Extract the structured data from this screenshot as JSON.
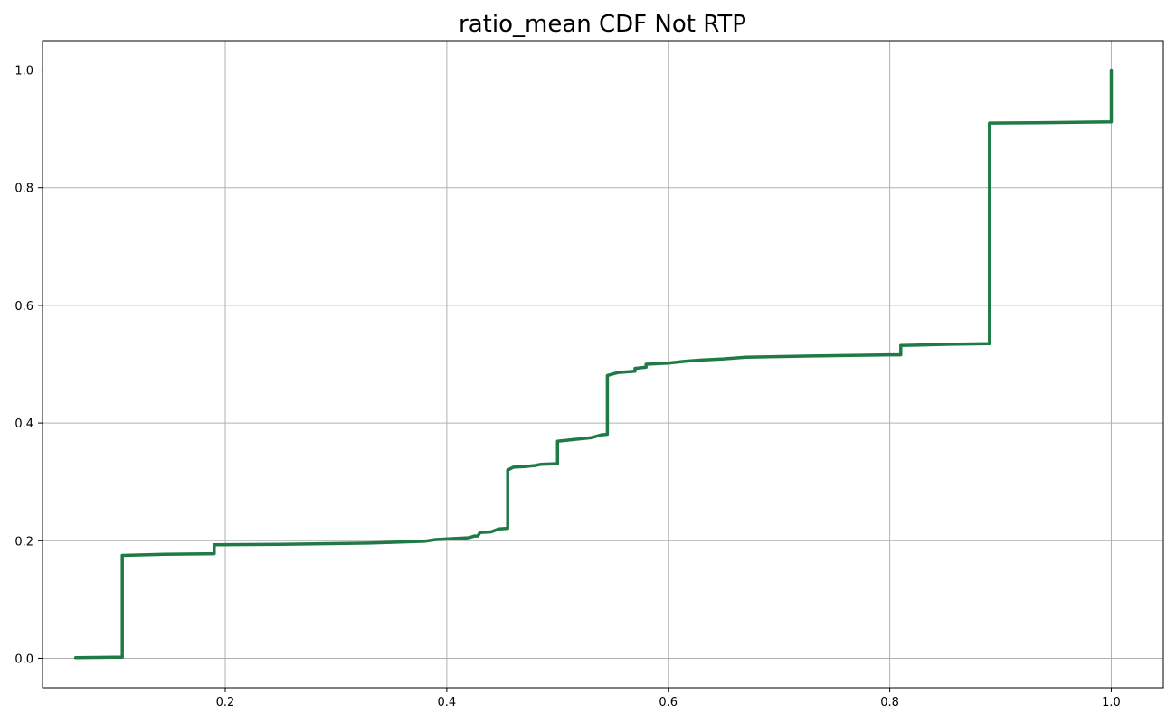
{
  "chart_data": {
    "type": "line",
    "title": "ratio_mean CDF Not RTP",
    "xlabel": "",
    "ylabel": "",
    "xlim": [
      0.035,
      1.047
    ],
    "ylim": [
      -0.05,
      1.05
    ],
    "xticks": [
      0.2,
      0.4,
      0.6,
      0.8,
      1.0
    ],
    "xtick_labels": [
      "0.2",
      "0.4",
      "0.6",
      "0.8",
      "1.0"
    ],
    "yticks": [
      0.0,
      0.2,
      0.4,
      0.6,
      0.8,
      1.0
    ],
    "ytick_labels": [
      "0.0",
      "0.2",
      "0.4",
      "0.6",
      "0.8",
      "1.0"
    ],
    "grid": true,
    "legend": "none",
    "line_color": "#1e7b46",
    "series": [
      {
        "x": [
          0.065,
          0.107,
          0.107,
          0.145,
          0.19,
          0.19,
          0.25,
          0.33,
          0.38,
          0.39,
          0.42,
          0.425,
          0.428,
          0.43,
          0.44,
          0.447,
          0.455,
          0.455,
          0.46,
          0.47,
          0.48,
          0.485,
          0.5,
          0.5,
          0.515,
          0.53,
          0.54,
          0.545,
          0.545,
          0.555,
          0.57,
          0.57,
          0.58,
          0.58,
          0.6,
          0.615,
          0.63,
          0.65,
          0.67,
          0.73,
          0.8,
          0.81,
          0.81,
          0.855,
          0.89,
          0.89,
          0.95,
          1.0,
          1.0
        ],
        "y": [
          0.001,
          0.002,
          0.175,
          0.177,
          0.178,
          0.193,
          0.194,
          0.196,
          0.199,
          0.202,
          0.205,
          0.208,
          0.208,
          0.214,
          0.215,
          0.22,
          0.221,
          0.32,
          0.325,
          0.326,
          0.328,
          0.33,
          0.331,
          0.369,
          0.372,
          0.375,
          0.38,
          0.381,
          0.481,
          0.486,
          0.488,
          0.493,
          0.495,
          0.5,
          0.502,
          0.505,
          0.507,
          0.509,
          0.512,
          0.514,
          0.516,
          0.516,
          0.532,
          0.534,
          0.535,
          0.91,
          0.911,
          0.912,
          1.0
        ]
      }
    ]
  }
}
